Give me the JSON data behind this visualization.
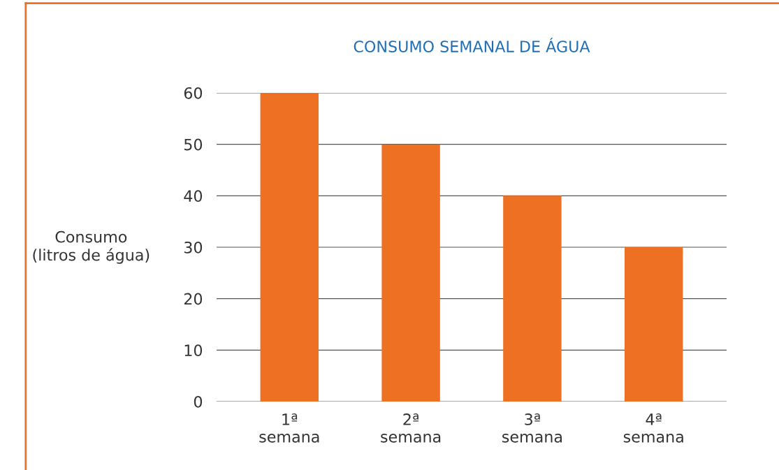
{
  "chart_data": {
    "type": "bar",
    "title": "CONSUMO SEMANAL DE ÁGUA",
    "ylabel": "Consumo\n(litros de água)",
    "categories": [
      "1ª\nsemana",
      "2ª\nsemana",
      "3ª\nsemana",
      "4ª\nsemana"
    ],
    "values": [
      60,
      50,
      40,
      30
    ],
    "color": "#ee7023",
    "ylim": [
      0,
      60
    ],
    "yticks": [
      0,
      10,
      20,
      30,
      40,
      50,
      60
    ],
    "grid": "y"
  }
}
